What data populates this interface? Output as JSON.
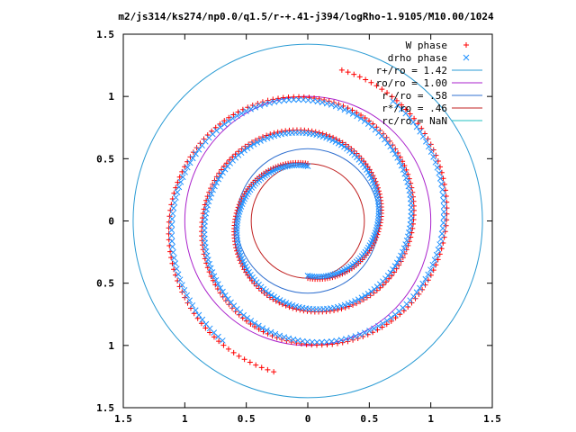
{
  "chart_data": {
    "type": "scatter",
    "title": "m2/js314/ks274/np0.0/q1.5/r-+.41-j394/logRho-1.9105/M10.00/1024",
    "xlim": [
      -1.5,
      1.5
    ],
    "ylim": [
      -1.5,
      1.5
    ],
    "x_ticks": [
      -1.5,
      -1,
      -0.5,
      0,
      0.5,
      1,
      1.5
    ],
    "y_ticks": [
      -1.5,
      -1,
      -0.5,
      0,
      0.5,
      1,
      1.5
    ],
    "x_tick_labels": [
      "1.5",
      "1",
      "0.5",
      "0",
      "0.5",
      "1",
      "1.5"
    ],
    "y_tick_labels": [
      "1.5",
      "1",
      "0.5",
      "0",
      "0.5",
      "1",
      "1.5"
    ],
    "grid": false,
    "legend_position": "top-right",
    "series": [
      {
        "name": "W phase",
        "kind": "points",
        "marker": "plus",
        "color": "#ff0000",
        "spirals": [
          {
            "a0": 0.46,
            "theta0": 0.0,
            "theta1": 9.2,
            "b": -0.1,
            "sign": 1
          },
          {
            "a0": 0.46,
            "theta0": 0.0,
            "theta1": 9.2,
            "b": -0.1,
            "sign": -1
          }
        ]
      },
      {
        "name": "drho phase",
        "kind": "points",
        "marker": "cross",
        "color": "#1e90ff",
        "spirals": [
          {
            "a0": 0.44,
            "theta0": 0.0,
            "theta1": 8.8,
            "b": -0.1,
            "sign": 1
          },
          {
            "a0": 0.44,
            "theta0": 0.0,
            "theta1": 8.8,
            "b": -0.1,
            "sign": -1
          }
        ]
      },
      {
        "name": "r+/ro = 1.42",
        "kind": "circle",
        "r": 1.42,
        "color": "#2a9bd4"
      },
      {
        "name": "ro/ro = 1.00",
        "kind": "circle",
        "r": 1.0,
        "color": "#aa22cc"
      },
      {
        "name": "r-/ro = .58",
        "kind": "circle",
        "r": 0.58,
        "color": "#3070d0"
      },
      {
        "name": "r*/ro = .46",
        "kind": "circle",
        "r": 0.46,
        "color": "#c02020"
      },
      {
        "name": "rc/ro = NaN",
        "kind": "circle",
        "r": null,
        "color": "#20c0c0"
      }
    ]
  }
}
